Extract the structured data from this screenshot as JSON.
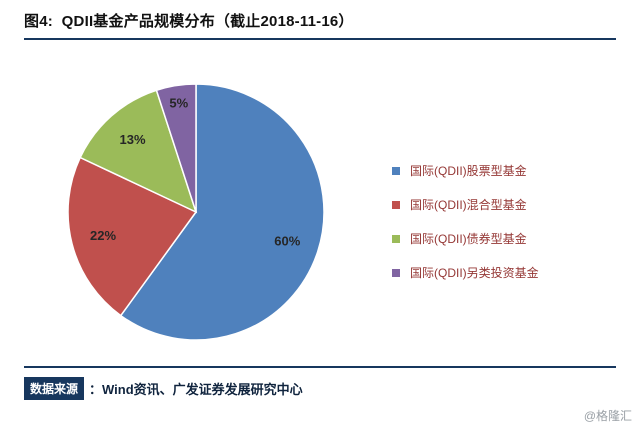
{
  "header": {
    "title": "图4:  QDII基金产品规模分布（截止2018-11-16）"
  },
  "chart_data": {
    "type": "pie",
    "title": "QDII基金产品规模分布（截止2018-11-16）",
    "categories": [
      "国际(QDII)股票型基金",
      "国际(QDII)混合型基金",
      "国际(QDII)债券型基金",
      "国际(QDII)另类投资基金"
    ],
    "values": [
      60,
      22,
      13,
      5
    ],
    "labels": [
      "60%",
      "22%",
      "13%",
      "5%"
    ],
    "unit": "%",
    "colors": [
      "#4F81BD",
      "#C0504D",
      "#9BBB59",
      "#8064A2"
    ],
    "legend_position": "right",
    "start_angle_deg": 0,
    "direction": "clockwise"
  },
  "footer": {
    "source_label": "数据来源",
    "source_text": "：Wind资讯、广发证券发展研究中心",
    "watermark": "@格隆汇"
  },
  "accent_color": "#17375E"
}
